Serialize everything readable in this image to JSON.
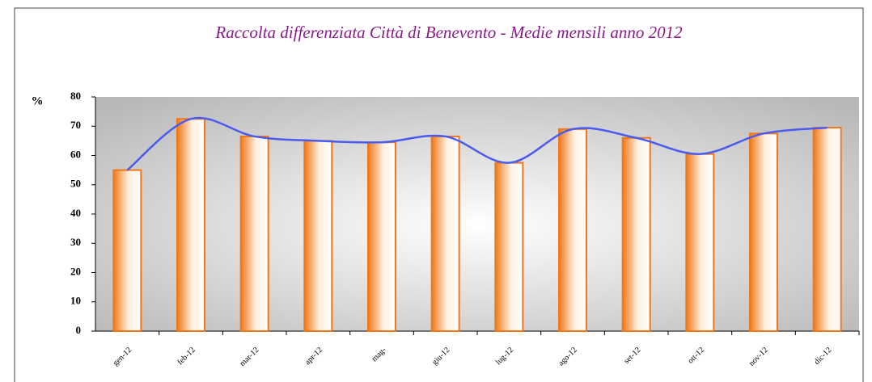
{
  "chart_data": {
    "type": "bar",
    "title": "Raccolta differenziata  Città di Benevento  - Medie mensili  anno 2012",
    "y_label": "%",
    "categories": [
      "gen-12",
      "feb-12",
      "mar-12",
      "apr-12",
      "mag-",
      "giu-12",
      "lug-12",
      "ago-12",
      "set-12",
      "ott-12",
      "nov-12",
      "dic-12"
    ],
    "series": [
      {
        "name": "bars",
        "type": "bar",
        "color": "#f07818",
        "values": [
          55,
          72.5,
          66.5,
          65,
          64.5,
          66.5,
          57.5,
          69,
          66,
          60.5,
          67.5,
          69.5
        ]
      },
      {
        "name": "line",
        "type": "line",
        "color": "#4a5cf0",
        "values": [
          55,
          72.5,
          66.5,
          65,
          64.5,
          66.5,
          57.5,
          69,
          66,
          60.5,
          67.5,
          69.5
        ]
      }
    ],
    "ylim": [
      0,
      80
    ],
    "yticks": [
      0,
      10,
      20,
      30,
      40,
      50,
      60,
      70,
      80
    ],
    "grid": false
  }
}
